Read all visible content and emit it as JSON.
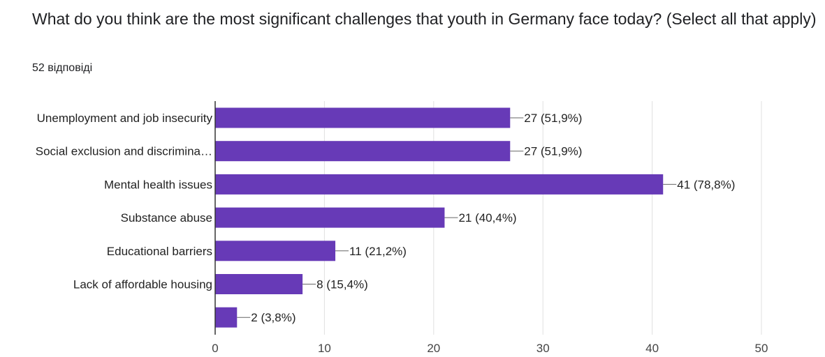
{
  "question": {
    "title": "What do you think are the most significant challenges that youth in Germany face today? (Select all that apply)",
    "responses": "52 відповіді"
  },
  "colors": {
    "bar": "#673ab7",
    "grid": "#e0e0e0",
    "axis": "#333333",
    "connector": "#666666"
  },
  "chart_data": {
    "type": "bar",
    "orientation": "horizontal",
    "categories": [
      "Unemployment and job insecurity",
      "Social exclusion and discrimina…",
      "Mental health issues",
      "Substance abuse",
      "Educational barriers",
      "Lack of affordable housing",
      ""
    ],
    "values": [
      27,
      27,
      41,
      21,
      11,
      8,
      2
    ],
    "data_labels": [
      "27 (51,9%)",
      "27 (51,9%)",
      "41 (78,8%)",
      "21 (40,4%)",
      "11 (21,2%)",
      "8 (15,4%)",
      "2 (3,8%)"
    ],
    "xlim": [
      0,
      50
    ],
    "xticks": [
      0,
      10,
      20,
      30,
      40,
      50
    ],
    "grid": true,
    "legend": "none"
  }
}
